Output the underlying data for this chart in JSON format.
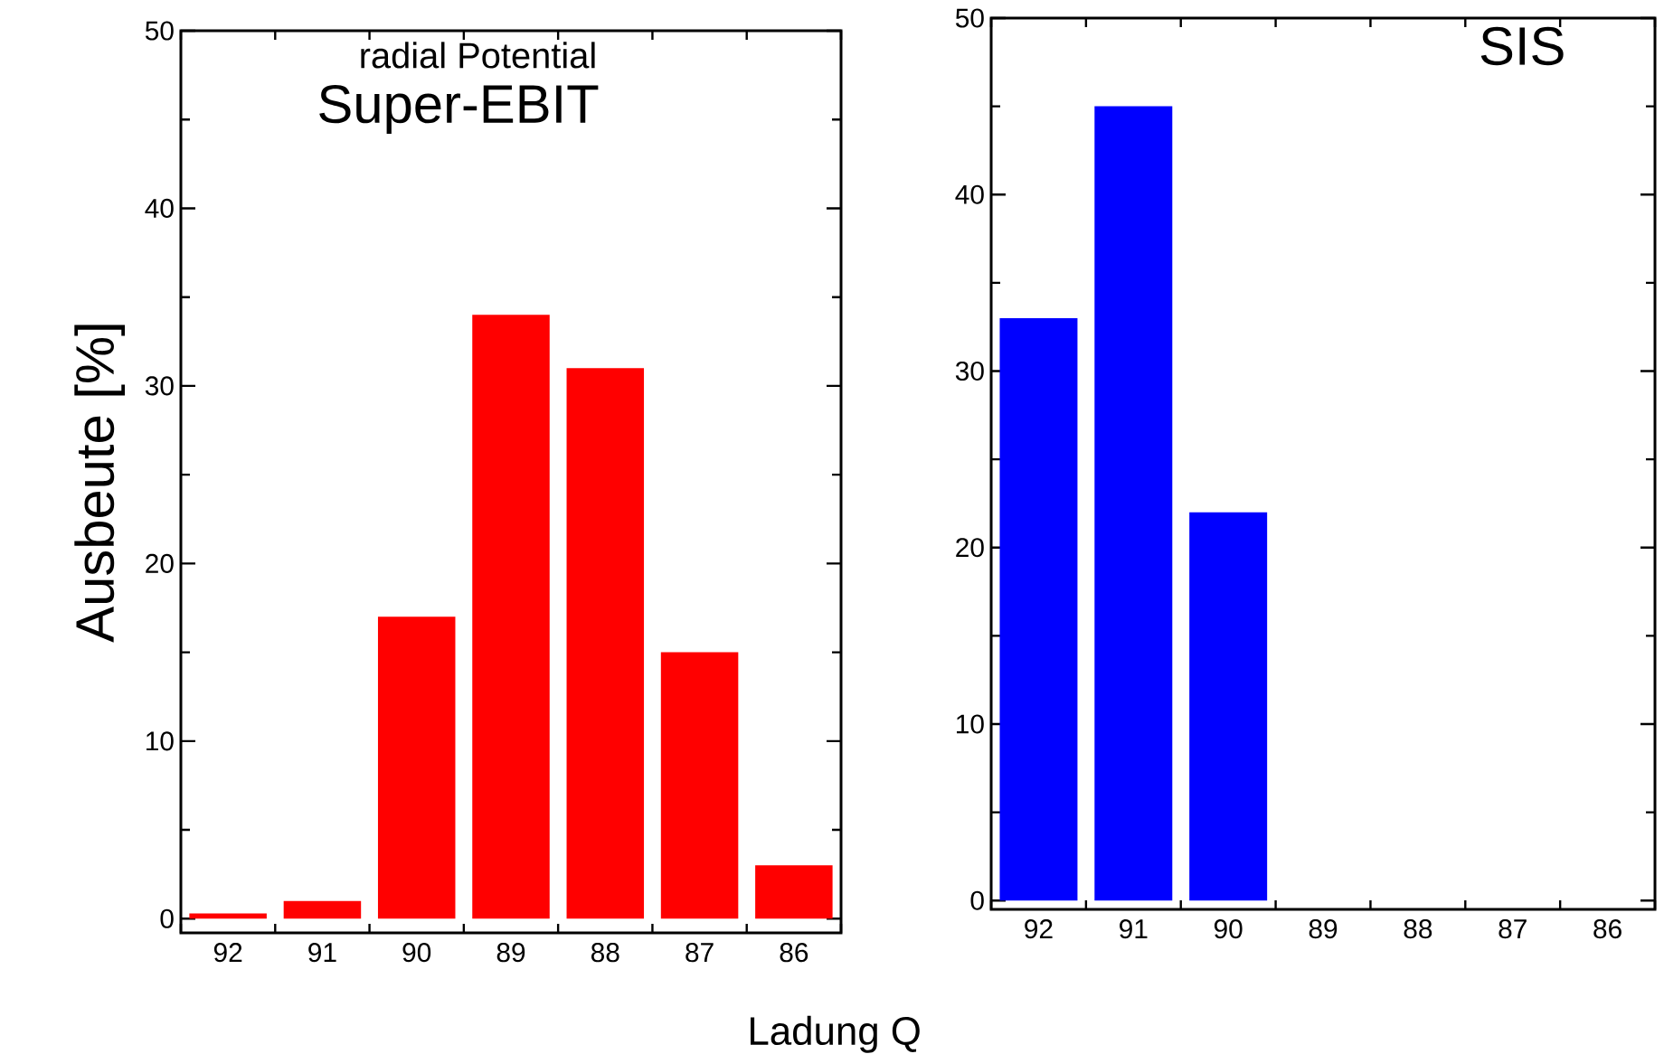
{
  "chart_data": [
    {
      "type": "bar",
      "title": "Super-EBIT",
      "xlabel": "Ladung Q",
      "ylabel": "Ausbeute [%]",
      "annotations": [
        "radial Potential"
      ],
      "categories": [
        "92",
        "91",
        "90",
        "89",
        "88",
        "87",
        "86"
      ],
      "values": [
        0.3,
        1,
        17,
        34,
        31,
        15,
        3
      ],
      "color": "#ff0000",
      "ylim": [
        -0.8,
        50
      ],
      "yticks": [
        0,
        10,
        20,
        30,
        40,
        50
      ]
    },
    {
      "type": "bar",
      "title": "SIS",
      "categories": [
        "92",
        "91",
        "90",
        "89",
        "88",
        "87",
        "86"
      ],
      "values": [
        33,
        45,
        22,
        null,
        null,
        null,
        null
      ],
      "color": "#0000ff",
      "ylim": [
        -0.5,
        50
      ],
      "yticks": [
        0,
        10,
        20,
        30,
        40,
        50
      ]
    }
  ]
}
